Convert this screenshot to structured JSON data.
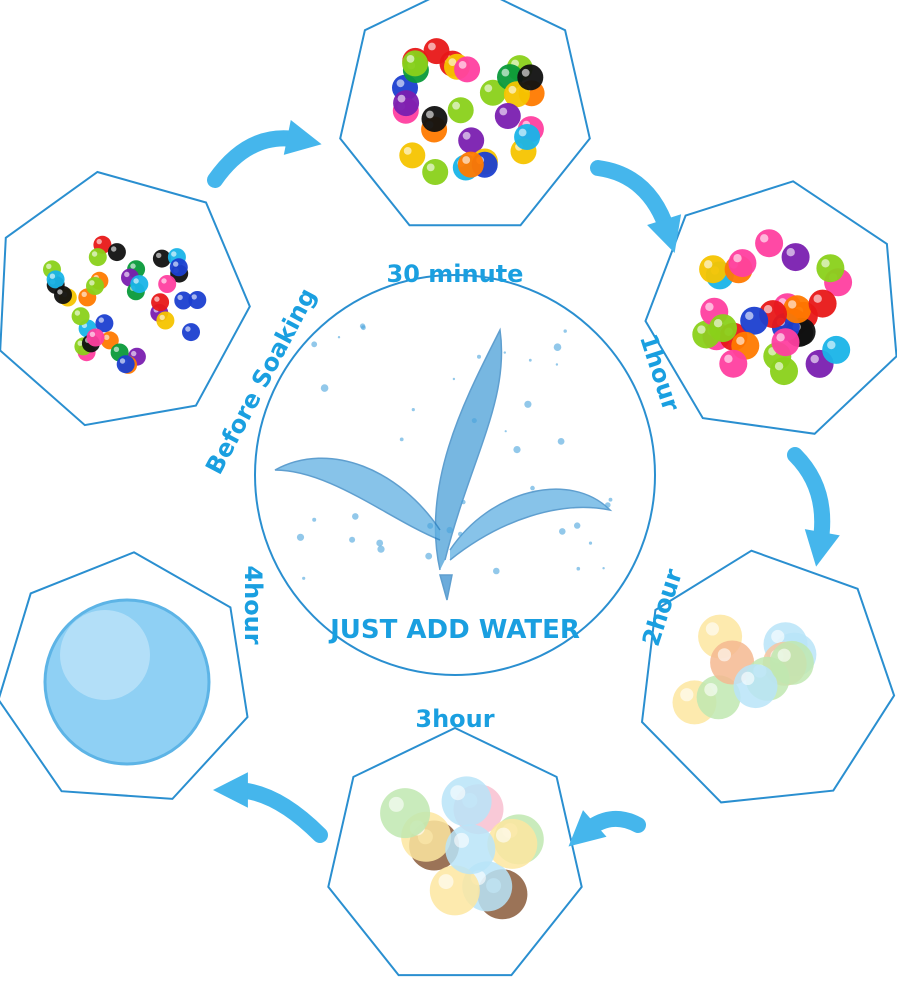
{
  "center": {
    "title": "JUST ADD WATER",
    "icon": "water-splash-leaves"
  },
  "stages": [
    {
      "label": "Before Soaking",
      "image": "small-colorful-beads"
    },
    {
      "label": "30 minute",
      "image": "swelling-colorful-beads"
    },
    {
      "label": "1hour",
      "image": "larger-colorful-beads"
    },
    {
      "label": "2hour",
      "image": "translucent-beads"
    },
    {
      "label": "3hour",
      "image": "large-translucent-beads"
    },
    {
      "label": "4hour",
      "image": "single-blue-water-bead"
    }
  ],
  "colors": {
    "accent": "#1a9fe0",
    "outline": "#2a8fd0",
    "arrow": "#45b6ec"
  }
}
